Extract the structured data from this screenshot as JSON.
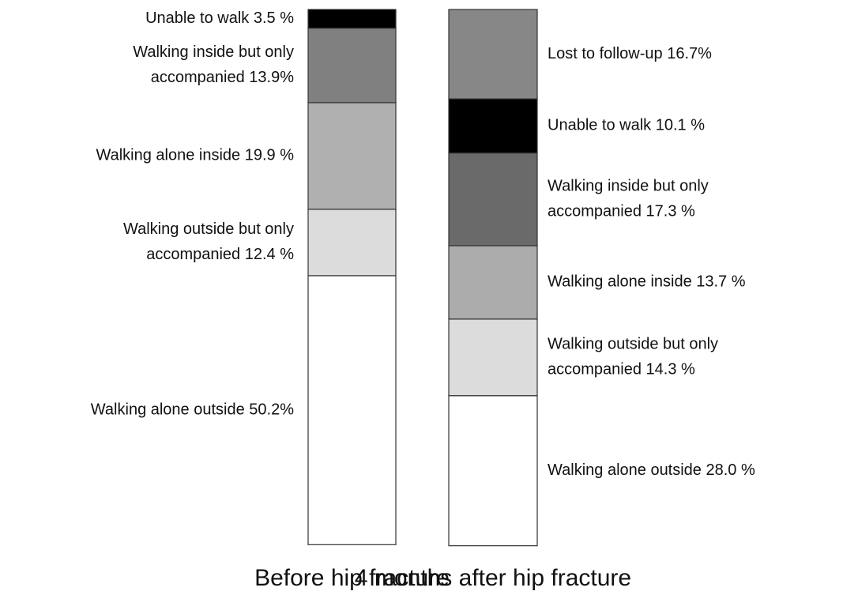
{
  "chart_data": {
    "type": "stacked_bar",
    "ylim": [
      0,
      100
    ],
    "bars": [
      {
        "name": "Before hip fracture",
        "segments": [
          {
            "label": [
              "Unable to walk 3.5 %"
            ],
            "value": 3.5,
            "color": "#000000"
          },
          {
            "label": [
              "Walking inside but only",
              "accompanied 13.9%"
            ],
            "value": 13.9,
            "color": "#808080"
          },
          {
            "label": [
              "Walking alone inside 19.9 %"
            ],
            "value": 19.9,
            "color": "#b0b0b0"
          },
          {
            "label": [
              "Walking outside but only",
              "accompanied 12.4 %"
            ],
            "value": 12.4,
            "color": "#dcdcdc"
          },
          {
            "label": [
              "Walking alone outside 50.2%"
            ],
            "value": 50.2,
            "color": "#ffffff"
          }
        ]
      },
      {
        "name": "4 months after hip fracture",
        "segments": [
          {
            "label": [
              "Lost to follow-up 16.7%"
            ],
            "value": 16.7,
            "color": "#878787"
          },
          {
            "label": [
              "Unable to walk 10.1 %"
            ],
            "value": 10.1,
            "color": "#000000"
          },
          {
            "label": [
              "Walking inside but only",
              "accompanied 17.3 %"
            ],
            "value": 17.3,
            "color": "#6a6a6a"
          },
          {
            "label": [
              "Walking alone inside 13.7 %"
            ],
            "value": 13.7,
            "color": "#acacac"
          },
          {
            "label": [
              "Walking outside but only",
              "accompanied 14.3 %"
            ],
            "value": 14.3,
            "color": "#dcdcdc"
          },
          {
            "label": [
              "Walking alone outside 28.0 %"
            ],
            "value": 28.0,
            "color": "#ffffff"
          }
        ]
      }
    ]
  }
}
